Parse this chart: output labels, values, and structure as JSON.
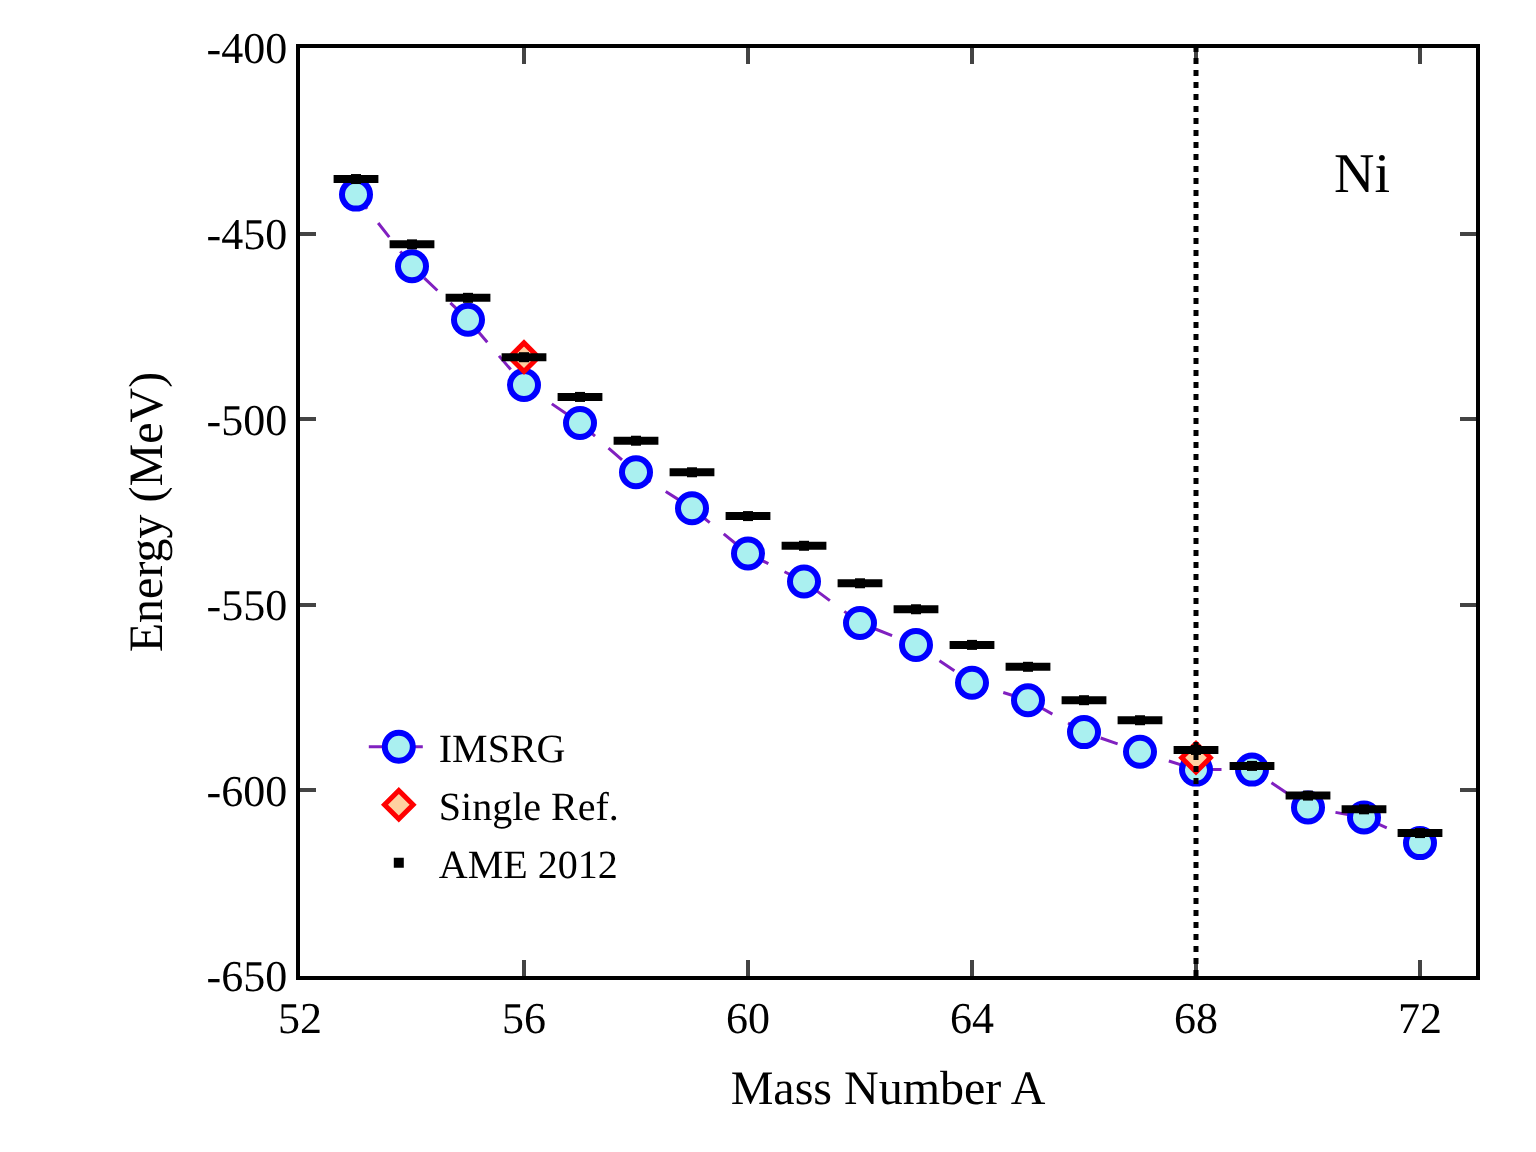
{
  "chart_data": {
    "type": "line",
    "xlabel": "Mass Number A",
    "ylabel": "Energy (MeV)",
    "x": [
      53,
      54,
      55,
      56,
      57,
      58,
      59,
      60,
      61,
      62,
      63,
      64,
      65,
      66,
      67,
      68,
      69,
      70,
      71,
      72
    ],
    "series": [
      {
        "name": "IMSRG",
        "color": "#0000ff",
        "marker": "circle",
        "line_style": "dashed",
        "values": [
          -439.5,
          -458.8,
          -473.2,
          -490.8,
          -501,
          -514.3,
          -524,
          -536.2,
          -543.7,
          -554.9,
          -560.8,
          -571,
          -575.7,
          -584.3,
          -589.6,
          -594.4,
          -594.4,
          -604.6,
          -607.3,
          -614.2
        ]
      },
      {
        "name": "Single Ref.",
        "type": "scatter",
        "color": "#ff0000",
        "marker": "diamond",
        "x": [
          56,
          68
        ],
        "values": [
          -483.3,
          -591.2
        ]
      },
      {
        "name": "AME 2012",
        "type": "scatter",
        "color": "#000000",
        "marker": "square",
        "xerrors": [
          0.4,
          0.4,
          0.4,
          0.4,
          0.4,
          0.4,
          0.4,
          0.4,
          0.4,
          0.4,
          0.4,
          0.4,
          0.4,
          0.4,
          0.4,
          0.4,
          0.4,
          0.4,
          0.4,
          0.4
        ],
        "values": [
          -435.3,
          -452.9,
          -467.3,
          -483.3,
          -494,
          -505.8,
          -514.3,
          -526.1,
          -534.1,
          -544.2,
          -551.2,
          -560.8,
          -566.7,
          -575.7,
          -581.1,
          -589.1,
          -593.4,
          -601.4,
          -605.1,
          -611.5
        ]
      }
    ],
    "xlim": [
      52,
      73
    ],
    "xticks": [
      52,
      56,
      60,
      64,
      68,
      72
    ],
    "ylim": [
      -650,
      -400
    ],
    "yticks": [
      -650,
      -600,
      -550,
      -500,
      -450,
      -400
    ],
    "ref_lines": [
      {
        "axis": "x",
        "value": 68,
        "label": null,
        "color": "#000000",
        "line_style": "dotted"
      }
    ],
    "annotations": [
      "Ni"
    ],
    "legend": "bottom left"
  }
}
